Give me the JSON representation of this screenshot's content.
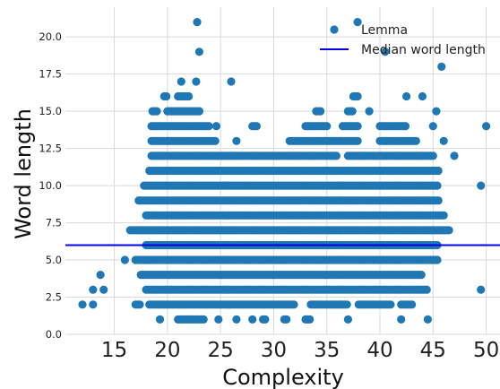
{
  "chart_data": {
    "type": "scatter",
    "xlabel": "Complexity",
    "ylabel": "Word length",
    "xlim": [
      10.4,
      51.3
    ],
    "ylim": [
      0,
      22
    ],
    "xticks": [
      "15",
      "20",
      "25",
      "30",
      "35",
      "40",
      "45",
      "50"
    ],
    "yticks": [
      "0.0",
      "2.5",
      "5.0",
      "7.5",
      "10.0",
      "12.5",
      "15.0",
      "17.5",
      "20.0"
    ],
    "grid": true,
    "legend_position": "top-right",
    "colors": {
      "points": "#1f77b4",
      "median": "#0000e6",
      "grid": "#d9d9d9"
    },
    "series": [
      {
        "name": "Lemma",
        "kind": "scatter",
        "bands": [
          {
            "y": 1,
            "x_ranges": [
              [
                19.3,
                19.3
              ],
              [
                21.0,
                23.5
              ],
              [
                24.8,
                24.8
              ],
              [
                26.5,
                26.5
              ],
              [
                28.0,
                28.0
              ],
              [
                29.0,
                29.3
              ],
              [
                31.0,
                31.3
              ],
              [
                33.0,
                33.5
              ],
              [
                37.0,
                37.0
              ],
              [
                42.0,
                42.0
              ],
              [
                44.5,
                44.5
              ]
            ]
          },
          {
            "y": 2,
            "x_ranges": [
              [
                12.0,
                12.0
              ],
              [
                13.0,
                13.0
              ],
              [
                17.0,
                17.5
              ],
              [
                18.3,
                32.0
              ],
              [
                33.5,
                37.0
              ],
              [
                38.0,
                41.0
              ],
              [
                42.0,
                43.0
              ]
            ]
          },
          {
            "y": 3,
            "x_ranges": [
              [
                13.0,
                13.0
              ],
              [
                14.0,
                14.0
              ],
              [
                18.0,
                44.5
              ],
              [
                49.5,
                49.5
              ]
            ]
          },
          {
            "y": 4,
            "x_ranges": [
              [
                13.7,
                13.7
              ],
              [
                17.5,
                44.0
              ]
            ]
          },
          {
            "y": 5,
            "x_ranges": [
              [
                16.0,
                16.0
              ],
              [
                17.0,
                45.5
              ]
            ]
          },
          {
            "y": 6,
            "x_ranges": [
              [
                18.0,
                45.5
              ]
            ]
          },
          {
            "y": 7,
            "x_ranges": [
              [
                16.5,
                46.5
              ]
            ]
          },
          {
            "y": 8,
            "x_ranges": [
              [
                18.0,
                46.0
              ]
            ]
          },
          {
            "y": 9,
            "x_ranges": [
              [
                17.3,
                45.5
              ]
            ]
          },
          {
            "y": 10,
            "x_ranges": [
              [
                17.8,
                45.5
              ],
              [
                49.5,
                49.5
              ]
            ]
          },
          {
            "y": 11,
            "x_ranges": [
              [
                18.3,
                45.5
              ]
            ]
          },
          {
            "y": 12,
            "x_ranges": [
              [
                18.5,
                36.0
              ],
              [
                37.0,
                45.0
              ],
              [
                47.0,
                47.0
              ]
            ]
          },
          {
            "y": 13,
            "x_ranges": [
              [
                18.5,
                24.5
              ],
              [
                26.5,
                26.5
              ],
              [
                31.5,
                38.0
              ],
              [
                40.0,
                43.5
              ],
              [
                46.0,
                46.0
              ]
            ]
          },
          {
            "y": 14,
            "x_ranges": [
              [
                18.5,
                24.0
              ],
              [
                24.6,
                24.6
              ],
              [
                28.0,
                28.5
              ],
              [
                33.0,
                35.0
              ],
              [
                36.5,
                38.0
              ],
              [
                40.0,
                42.5
              ],
              [
                45.0,
                45.0
              ],
              [
                50.0,
                50.0
              ]
            ]
          },
          {
            "y": 15,
            "x_ranges": [
              [
                18.6,
                19.0
              ],
              [
                20.0,
                23.0
              ],
              [
                34.0,
                34.5
              ],
              [
                37.0,
                37.5
              ],
              [
                39.0,
                39.0
              ],
              [
                45.3,
                45.3
              ]
            ]
          },
          {
            "y": 16,
            "x_ranges": [
              [
                19.7,
                20.0
              ],
              [
                21.0,
                22.0
              ],
              [
                37.5,
                38.0
              ],
              [
                42.5,
                42.5
              ],
              [
                44.0,
                44.0
              ]
            ]
          },
          {
            "y": 17,
            "x_ranges": [
              [
                21.3,
                21.3
              ],
              [
                22.7,
                22.7
              ],
              [
                26.0,
                26.0
              ]
            ]
          },
          {
            "y": 18,
            "x_ranges": [
              [
                45.8,
                45.8
              ]
            ]
          },
          {
            "y": 19,
            "x_ranges": [
              [
                23.0,
                23.0
              ],
              [
                40.5,
                40.5
              ]
            ]
          },
          {
            "y": 21,
            "x_ranges": [
              [
                22.8,
                22.8
              ],
              [
                37.9,
                37.9
              ]
            ]
          }
        ]
      },
      {
        "name": "Median word length",
        "kind": "hline",
        "y": 6
      }
    ]
  }
}
